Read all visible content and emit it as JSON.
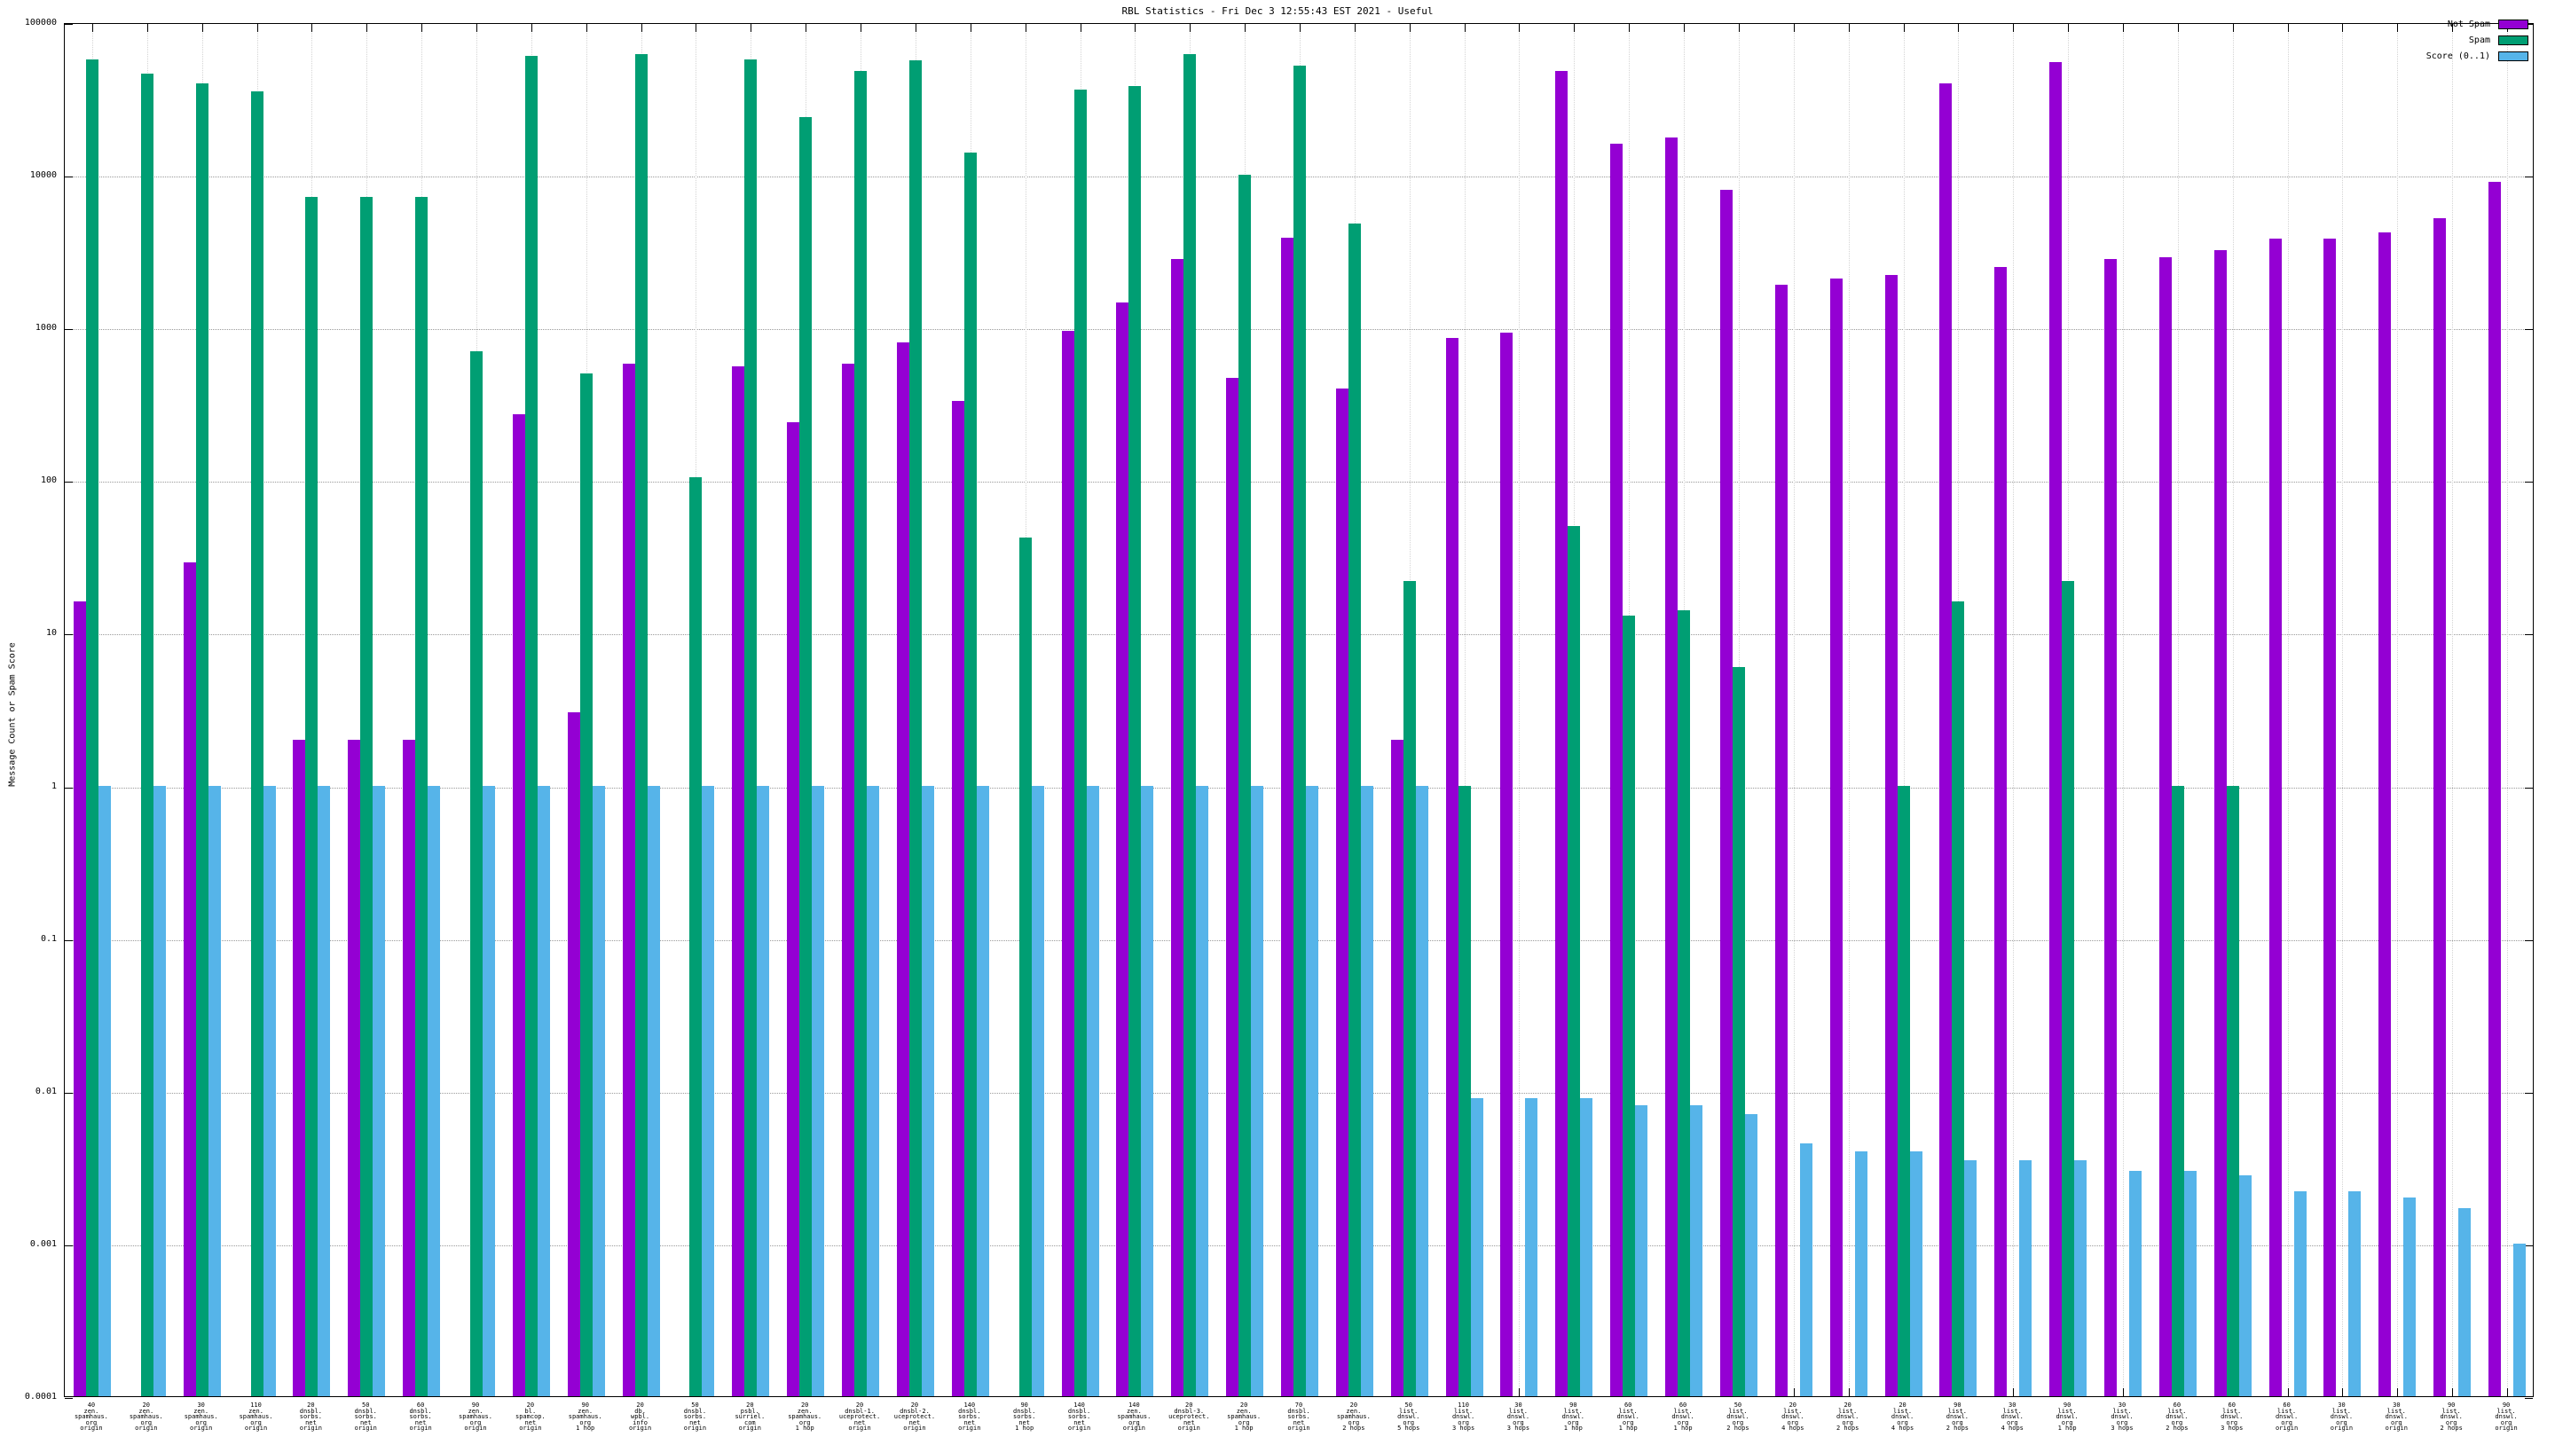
{
  "window": {
    "title": "RBL Statistics - Fri Dec  3 12:55:43 EST 2021 - Useful"
  },
  "axes": {
    "ylabel": "Message Count or Spam Score",
    "y_tick_labels": [
      "100000",
      "10000",
      "1000",
      "100",
      "10",
      "1",
      "0.1",
      "0.01",
      "0.001",
      "0.0001"
    ]
  },
  "colors": {
    "not_spam": "#9400d3",
    "spam": "#009e73",
    "score": "#56b4e9",
    "grid": "#9a9a9a",
    "background": "#ffffff"
  },
  "chart_data": {
    "type": "bar",
    "title": "RBL Statistics - Fri Dec  3 12:55:43 EST 2021 - Useful",
    "xlabel": "",
    "ylabel": "Message Count or Spam Score",
    "y_scale": "log10",
    "ylim": [
      0.0001,
      100000
    ],
    "grid": true,
    "legend_position": "top-right",
    "categories": [
      [
        "40",
        "zen.",
        "spamhaus.",
        "org",
        "origin"
      ],
      [
        "20",
        "zen.",
        "spamhaus.",
        "org",
        "origin"
      ],
      [
        "30",
        "zen.",
        "spamhaus.",
        "org",
        "origin"
      ],
      [
        "110",
        "zen.",
        "spamhaus.",
        "org",
        "origin"
      ],
      [
        "20",
        "dnsbl.",
        "sorbs.",
        "net",
        "origin"
      ],
      [
        "50",
        "dnsbl.",
        "sorbs.",
        "net",
        "origin"
      ],
      [
        "60",
        "dnsbl.",
        "sorbs.",
        "net",
        "origin"
      ],
      [
        "90",
        "zen.",
        "spamhaus.",
        "org",
        "origin"
      ],
      [
        "20",
        "bl.",
        "spamcop.",
        "net",
        "origin"
      ],
      [
        "90",
        "zen.",
        "spamhaus.",
        "org",
        "1 hop"
      ],
      [
        "20",
        "db.",
        "wpbl.",
        "info",
        "origin"
      ],
      [
        "50",
        "dnsbl.",
        "sorbs.",
        "net",
        "origin"
      ],
      [
        "20",
        "psbl.",
        "surriel.",
        "com",
        "origin"
      ],
      [
        "20",
        "zen.",
        "spamhaus.",
        "org",
        "1 hop"
      ],
      [
        "20",
        "dnsbl-1.",
        "uceprotect.",
        "net",
        "origin"
      ],
      [
        "20",
        "dnsbl-2.",
        "uceprotect.",
        "net",
        "origin"
      ],
      [
        "140",
        "dnsbl.",
        "sorbs.",
        "net",
        "origin"
      ],
      [
        "90",
        "dnsbl.",
        "sorbs.",
        "net",
        "1 hop"
      ],
      [
        "140",
        "dnsbl.",
        "sorbs.",
        "net",
        "origin"
      ],
      [
        "140",
        "zen.",
        "spamhaus.",
        "org",
        "origin"
      ],
      [
        "20",
        "dnsbl-3.",
        "uceprotect.",
        "net",
        "origin"
      ],
      [
        "20",
        "zen.",
        "spamhaus.",
        "org",
        "1 hop"
      ],
      [
        "70",
        "dnsbl.",
        "sorbs.",
        "net",
        "origin"
      ],
      [
        "20",
        "zen.",
        "spamhaus.",
        "org",
        "2 hops"
      ],
      [
        "50",
        "list.",
        "dnswl.",
        "org",
        "5 hops"
      ],
      [
        "110",
        "list.",
        "dnswl.",
        "org",
        "3 hops"
      ],
      [
        "30",
        "list.",
        "dnswl.",
        "org",
        "3 hops"
      ],
      [
        "90",
        "list.",
        "dnswl.",
        "org",
        "1 hop"
      ],
      [
        "60",
        "list.",
        "dnswl.",
        "org",
        "1 hop"
      ],
      [
        "60",
        "list.",
        "dnswl.",
        "org",
        "1 hop"
      ],
      [
        "50",
        "list.",
        "dnswl.",
        "org",
        "2 hops"
      ],
      [
        "20",
        "list.",
        "dnswl.",
        "org",
        "4 hops"
      ],
      [
        "20",
        "list.",
        "dnswl.",
        "org",
        "2 hops"
      ],
      [
        "20",
        "list.",
        "dnswl.",
        "org",
        "4 hops"
      ],
      [
        "90",
        "list.",
        "dnswl.",
        "org",
        "2 hops"
      ],
      [
        "30",
        "list.",
        "dnswl.",
        "org",
        "4 hops"
      ],
      [
        "90",
        "list.",
        "dnswl.",
        "org",
        "1 hop"
      ],
      [
        "30",
        "list.",
        "dnswl.",
        "org",
        "3 hops"
      ],
      [
        "60",
        "list.",
        "dnswl.",
        "org",
        "2 hops"
      ],
      [
        "60",
        "list.",
        "dnswl.",
        "org",
        "3 hops"
      ],
      [
        "60",
        "list.",
        "dnswl.",
        "org",
        "origin"
      ],
      [
        "30",
        "list.",
        "dnswl.",
        "org",
        "origin"
      ],
      [
        "30",
        "list.",
        "dnswl.",
        "org",
        "origin"
      ],
      [
        "90",
        "list.",
        "dnswl.",
        "org",
        "2 hops"
      ],
      [
        "90",
        "list.",
        "dnswl.",
        "org",
        "origin"
      ]
    ],
    "series": [
      {
        "name": "Not Spam",
        "color": "#9400d3",
        "values": [
          16,
          0,
          29,
          0,
          2,
          2,
          2,
          0,
          270,
          3,
          580,
          0,
          560,
          240,
          580,
          800,
          330,
          0,
          950,
          1450,
          2800,
          470,
          3900,
          400,
          2,
          860,
          920,
          48000,
          16000,
          17500,
          8000,
          1900,
          2100,
          2200,
          40000,
          2500,
          55000,
          2800,
          2900,
          3200,
          3800,
          3800,
          4200,
          5200,
          9000
        ]
      },
      {
        "name": "Spam",
        "color": "#009e73",
        "values": [
          57000,
          46000,
          40000,
          35000,
          7200,
          7200,
          7200,
          700,
          60000,
          500,
          62000,
          105,
          57000,
          24000,
          48000,
          56000,
          14000,
          42,
          36000,
          38000,
          62000,
          10000,
          52000,
          4800,
          22,
          1,
          0,
          50,
          13,
          14,
          6,
          0,
          0,
          1,
          16,
          0,
          22,
          0,
          1,
          1,
          0,
          0,
          0,
          0,
          0
        ]
      },
      {
        "name": "Score (0..1)",
        "color": "#56b4e9",
        "values": [
          1,
          1,
          1,
          1,
          1,
          1,
          1,
          1,
          1,
          1,
          1,
          1,
          1,
          1,
          1,
          1,
          1,
          1,
          1,
          1,
          1,
          1,
          1,
          1,
          1,
          0.009,
          0.009,
          0.009,
          0.008,
          0.008,
          0.007,
          0.0045,
          0.004,
          0.004,
          0.0035,
          0.0035,
          0.0035,
          0.003,
          0.003,
          0.0028,
          0.0022,
          0.0022,
          0.002,
          0.0017,
          0.001
        ]
      }
    ]
  }
}
